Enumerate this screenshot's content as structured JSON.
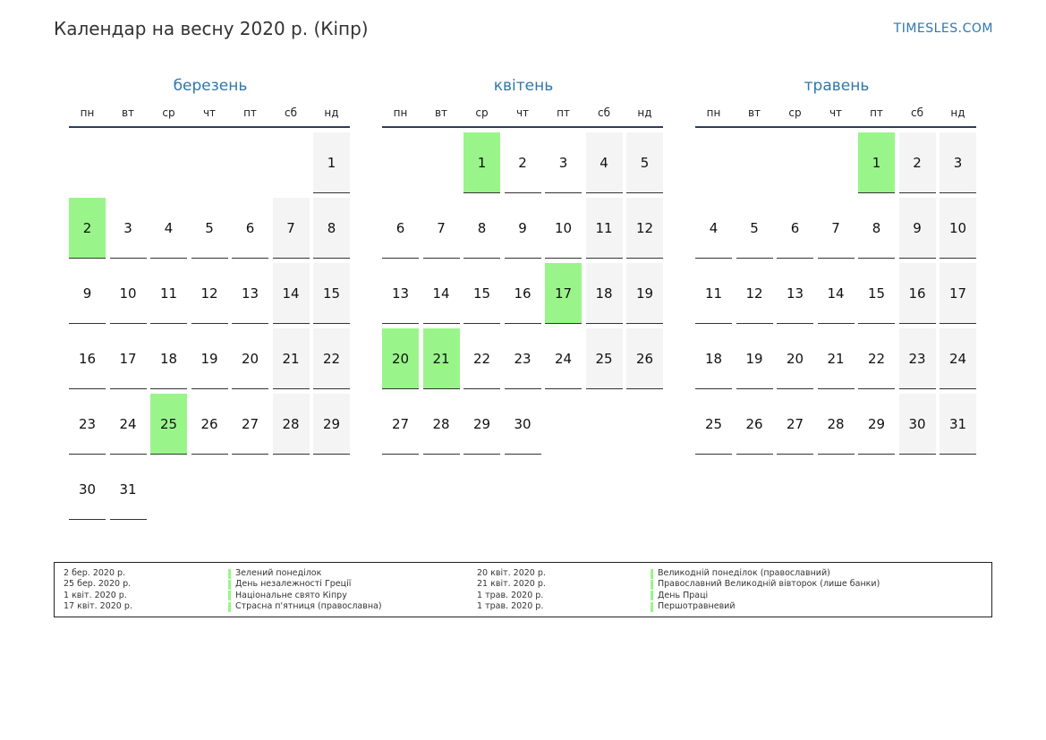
{
  "header": {
    "title": "Календар на весну 2020 р. (Кіпр)",
    "site": "TIMESLES.COM"
  },
  "weekdays": [
    "пн",
    "вт",
    "ср",
    "чт",
    "пт",
    "сб",
    "нд"
  ],
  "months": [
    {
      "name": "березень",
      "offset": 6,
      "days": 31,
      "holidays": [
        2,
        25
      ]
    },
    {
      "name": "квітень",
      "offset": 2,
      "days": 30,
      "holidays": [
        1,
        17,
        20,
        21
      ]
    },
    {
      "name": "травень",
      "offset": 4,
      "days": 31,
      "holidays": [
        1
      ]
    }
  ],
  "colors": {
    "holiday": "#99f58a",
    "weekend": "#f4f4f4",
    "accent": "#2f77ad"
  },
  "legend": [
    {
      "date": "2 бер. 2020 р.",
      "name": "Зелений понеділок"
    },
    {
      "date": "25 бер. 2020 р.",
      "name": "День незалежності Греції"
    },
    {
      "date": "1 квіт. 2020 р.",
      "name": "Національне свято Кіпру"
    },
    {
      "date": "17 квіт. 2020 р.",
      "name": "Страсна п'ятниця (православна)"
    },
    {
      "date": "20 квіт. 2020 р.",
      "name": "Великодній понеділок (православний)"
    },
    {
      "date": "21 квіт. 2020 р.",
      "name": "Православний Великодній вівторок (лише банки)"
    },
    {
      "date": "1 трав. 2020 р.",
      "name": "День Праці"
    },
    {
      "date": "1 трав. 2020 р.",
      "name": "Першотравневий"
    }
  ]
}
